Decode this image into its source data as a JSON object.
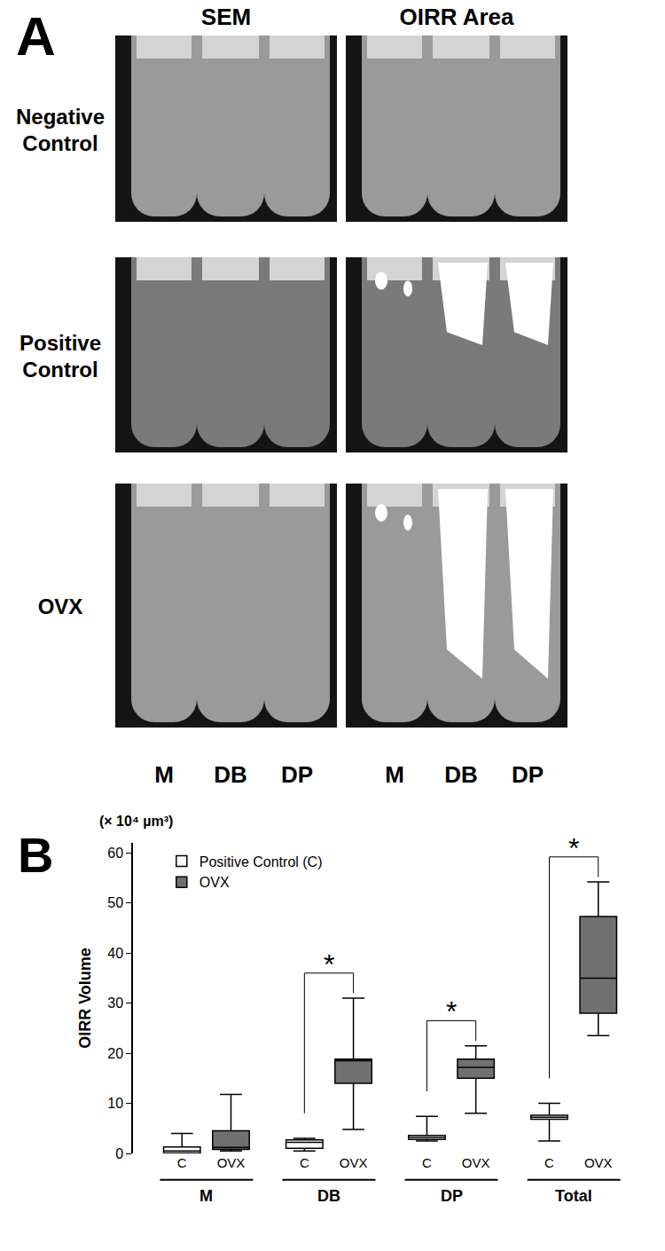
{
  "panel_a": {
    "label": "A",
    "columns": [
      "SEM",
      "OIRR Area"
    ],
    "rows": [
      "Negative Control",
      "Positive Control",
      "OVX"
    ],
    "roots": [
      "M",
      "DB",
      "DP"
    ]
  },
  "chart_data": {
    "type": "box",
    "panel_label": "B",
    "unit_label": "(× 10⁴ µm³)",
    "y_label": "OIRR Volume",
    "categories": [
      "M",
      "DB",
      "DP",
      "Total"
    ],
    "series": [
      {
        "name": "Positive Control (C)",
        "short": "C",
        "color": "#ffffff",
        "min": [
          0,
          0.5,
          2.5,
          2.5
        ],
        "q1": [
          0.1,
          1.0,
          2.8,
          6.8
        ],
        "median": [
          0.5,
          2.2,
          3.2,
          7.2
        ],
        "q3": [
          1.3,
          2.7,
          3.6,
          7.6
        ],
        "max": [
          4,
          3,
          7.4,
          10
        ]
      },
      {
        "name": "OVX",
        "short": "OVX",
        "color": "#707070",
        "min": [
          0.5,
          4.8,
          8,
          23.5
        ],
        "q1": [
          0.8,
          14,
          15,
          28
        ],
        "median": [
          1.2,
          18.5,
          17.2,
          35
        ],
        "q3": [
          4.5,
          18.8,
          18.8,
          47.3
        ],
        "max": [
          11.8,
          31,
          21.5,
          54.2
        ]
      }
    ],
    "significance": [
      {
        "category": "DB",
        "label": "*"
      },
      {
        "category": "DP",
        "label": "*"
      },
      {
        "category": "Total",
        "label": "*"
      }
    ],
    "ylim": [
      0,
      62
    ],
    "yticks": [
      0,
      10,
      20,
      30,
      40,
      50,
      60
    ],
    "grid": false,
    "legend": "top-left"
  }
}
